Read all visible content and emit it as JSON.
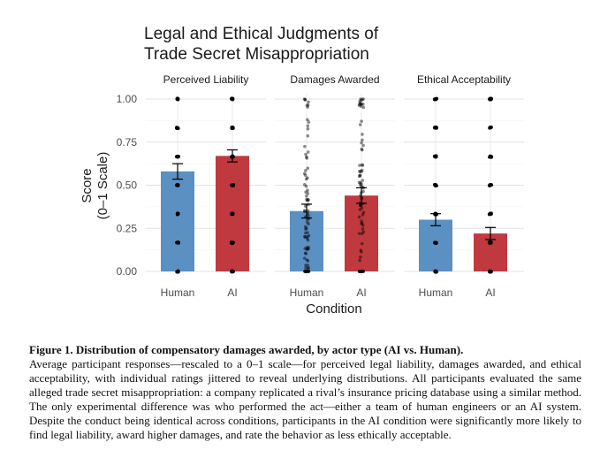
{
  "figure": {
    "caption_title": "Figure 1. Distribution of compensatory damages awarded, by actor type (AI vs. Human).",
    "caption_text": "Average participant responses—rescaled to a 0–1 scale—for perceived legal liability, damages awarded, and ethical acceptability, with individual ratings jittered to reveal underlying distributions. All participants evaluated the same alleged trade secret misappropriation: a company replicated a rival’s insurance pricing database using a similar method. The only experimental difference was who performed the act—either a team of human engineers or an AI system. Despite the conduct being identical across conditions, participants in the AI condition were significantly more likely to find legal liability, award higher damages, and rate the behavior as less ethically acceptable."
  },
  "chart_data": {
    "type": "bar",
    "title_lines": [
      "Legal and Ethical Judgments of",
      "Trade Secret Misappropriation"
    ],
    "xlabel": "Condition",
    "ylabel_lines": [
      "Score",
      "(0–1 Scale)"
    ],
    "ylim": [
      0,
      1.05
    ],
    "yticks": [
      0,
      0.25,
      0.5,
      0.75,
      1.0
    ],
    "ytick_labels": [
      "0.00",
      "0.25",
      "0.50",
      "0.75",
      "1.00"
    ],
    "grid": true,
    "categories": [
      "Human",
      "AI"
    ],
    "colors": {
      "Human": "#5b90c2",
      "AI": "#c0393f"
    },
    "panels": [
      {
        "name": "Perceived Liability",
        "values": [
          0.58,
          0.67
        ],
        "error": [
          0.045,
          0.035
        ],
        "points_levels": [
          0,
          0.1667,
          0.3333,
          0.5,
          0.6667,
          0.8333,
          1.0
        ],
        "points_style": "discrete"
      },
      {
        "name": "Damages Awarded",
        "values": [
          0.35,
          0.44
        ],
        "error": [
          0.04,
          0.045
        ],
        "points_style": "continuous"
      },
      {
        "name": "Ethical Acceptability",
        "values": [
          0.3,
          0.22
        ],
        "error": [
          0.035,
          0.035
        ],
        "points_levels": [
          0,
          0.1667,
          0.3333,
          0.5,
          0.6667,
          0.8333,
          1.0
        ],
        "points_style": "discrete"
      }
    ]
  }
}
